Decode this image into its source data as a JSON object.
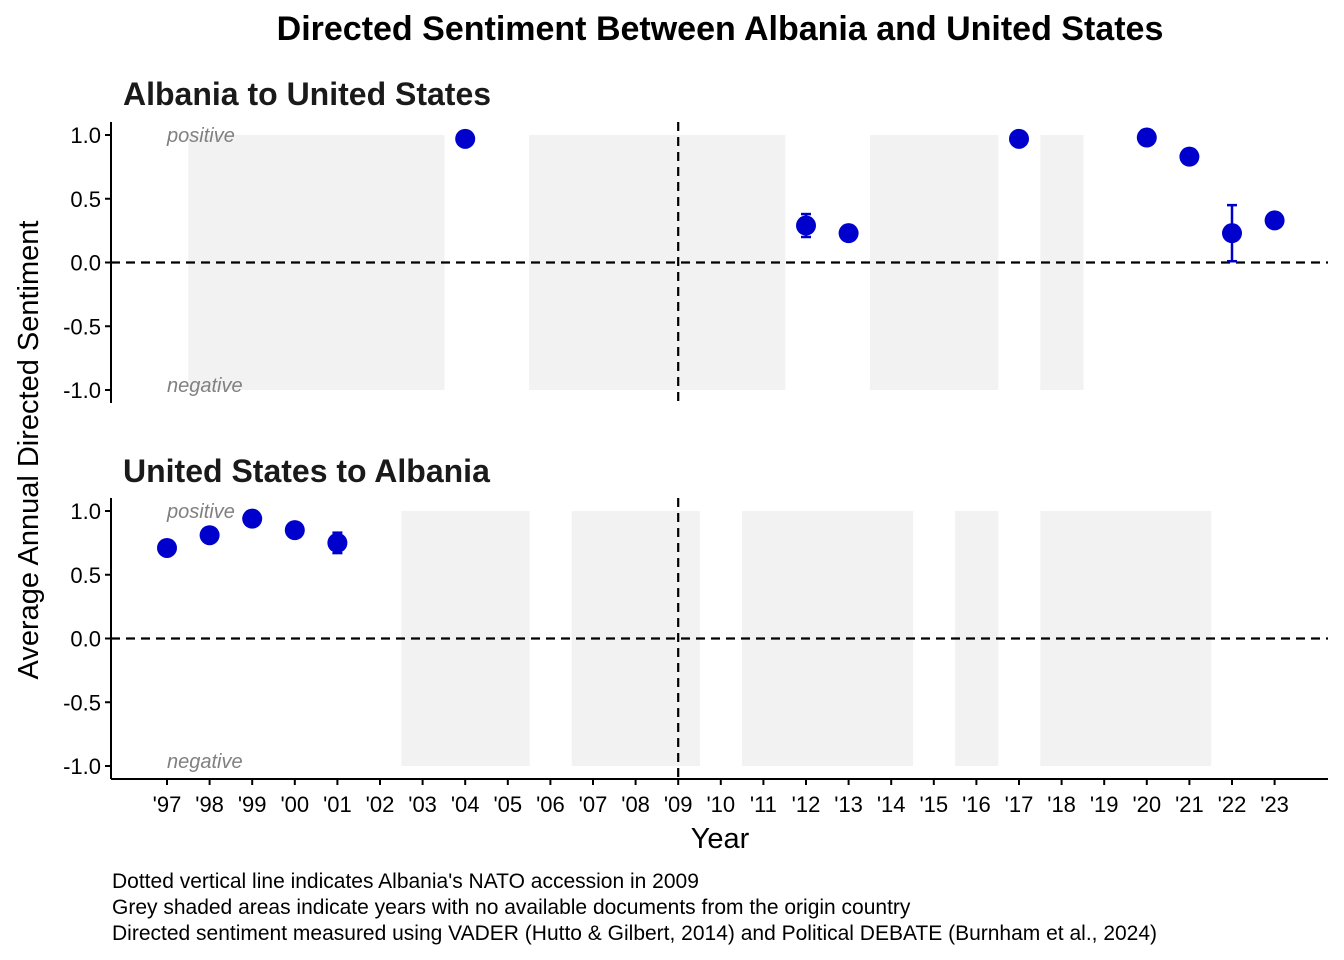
{
  "chart_data": {
    "type": "scatter",
    "title": "Directed Sentiment Between Albania and United States",
    "xlabel": "Year",
    "ylabel": "Average Annual Directed Sentiment",
    "x_tick_labels": [
      "'97",
      "'98",
      "'99",
      "'00",
      "'01",
      "'02",
      "'03",
      "'04",
      "'05",
      "'06",
      "'07",
      "'08",
      "'09",
      "'10",
      "'11",
      "'12",
      "'13",
      "'14",
      "'15",
      "'16",
      "'17",
      "'18",
      "'19",
      "'20",
      "'21",
      "'22",
      "'23"
    ],
    "x_range": [
      1997,
      2023
    ],
    "ylim": [
      -1.0,
      1.0
    ],
    "y_ticks": [
      "1.0",
      "0.5",
      "0.0",
      "-0.5",
      "-1.0"
    ],
    "reference_lines": {
      "horizontal_y": 0,
      "vertical_x": 2009
    },
    "point_color": "#0000CD",
    "shade_color": "#F2F2F2",
    "positive_label": "positive",
    "negative_label": "negative",
    "panels": [
      {
        "title": "Albania to United States",
        "no_data_years": [
          1998,
          1999,
          2000,
          2001,
          2002,
          2003,
          2006,
          2007,
          2008,
          2009,
          2010,
          2011,
          2014,
          2015,
          2016,
          2018
        ],
        "points": [
          {
            "x": 2004,
            "y": 0.97,
            "err": 0
          },
          {
            "x": 2012,
            "y": 0.29,
            "err": 0.09
          },
          {
            "x": 2013,
            "y": 0.23,
            "err": 0
          },
          {
            "x": 2017,
            "y": 0.97,
            "err": 0
          },
          {
            "x": 2020,
            "y": 0.98,
            "err": 0
          },
          {
            "x": 2021,
            "y": 0.83,
            "err": 0
          },
          {
            "x": 2022,
            "y": 0.23,
            "err": 0.22
          },
          {
            "x": 2023,
            "y": 0.33,
            "err": 0
          }
        ]
      },
      {
        "title": "United States to Albania",
        "no_data_years": [
          2003,
          2004,
          2005,
          2007,
          2008,
          2009,
          2011,
          2012,
          2013,
          2014,
          2016,
          2018,
          2019,
          2020,
          2021
        ],
        "points": [
          {
            "x": 1997,
            "y": 0.71,
            "err": 0
          },
          {
            "x": 1998,
            "y": 0.81,
            "err": 0
          },
          {
            "x": 1999,
            "y": 0.94,
            "err": 0
          },
          {
            "x": 2000,
            "y": 0.85,
            "err": 0.03
          },
          {
            "x": 2001,
            "y": 0.75,
            "err": 0.08
          }
        ]
      }
    ],
    "captions": [
      "Dotted vertical line indicates Albania's NATO accession in 2009",
      "Grey shaded areas indicate years with no available documents from the origin country",
      "Directed sentiment measured using VADER (Hutto & Gilbert, 2014) and Political DEBATE (Burnham et al., 2024)"
    ]
  }
}
